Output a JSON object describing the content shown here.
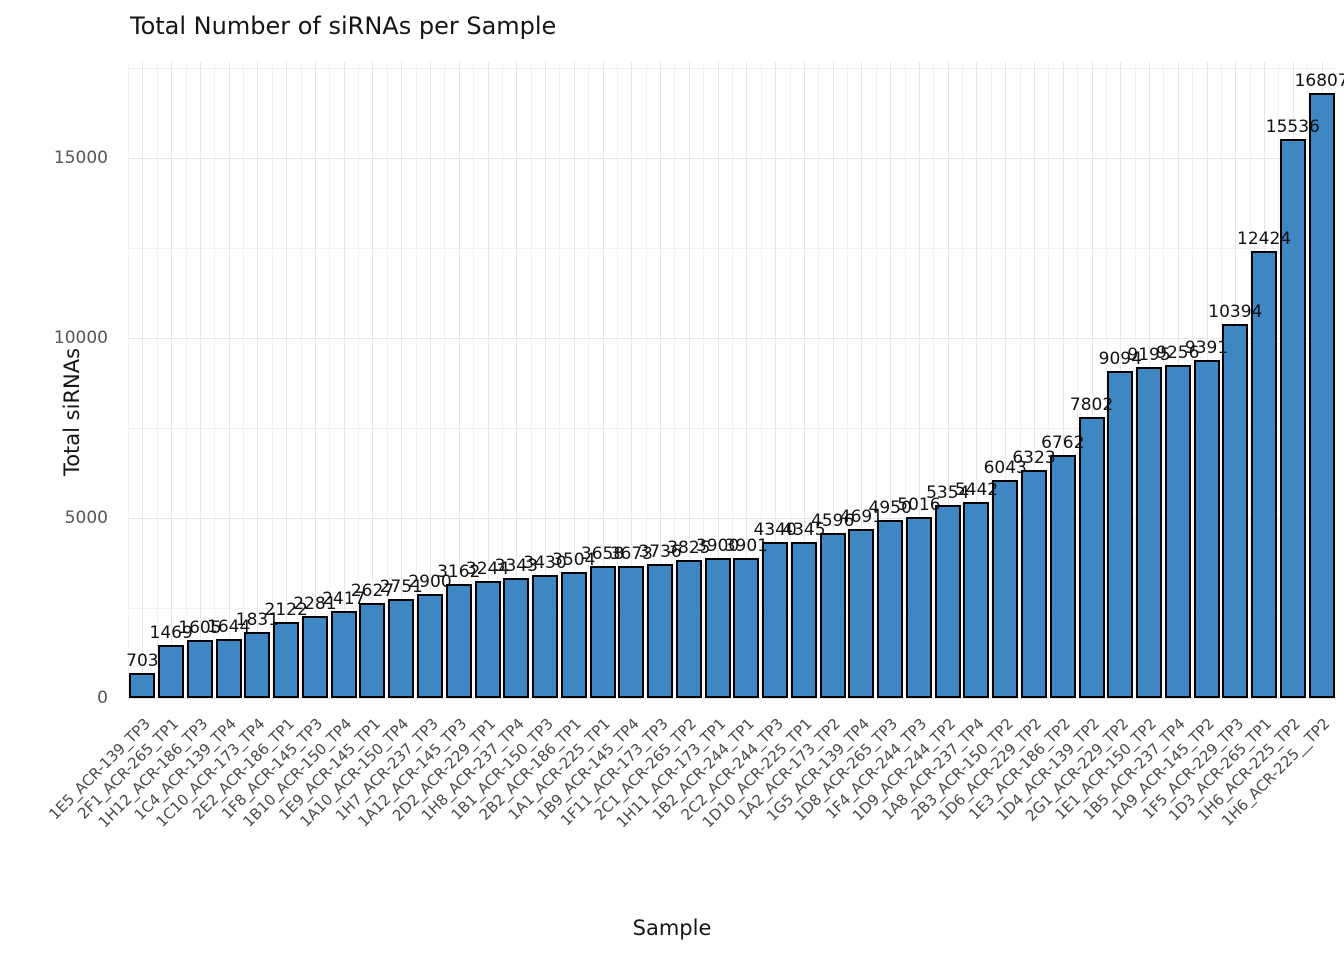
{
  "title": "Total Number of siRNAs per Sample",
  "chart_data": {
    "type": "bar",
    "title": "Total Number of siRNAs per Sample",
    "xlabel": "Sample",
    "ylabel": "Total siRNAs",
    "ylim": [
      0,
      17670
    ],
    "yticks": [
      0,
      5000,
      10000,
      15000
    ],
    "grid": true,
    "legend": "none",
    "bar_color": "#3e87c2",
    "bar_edge_color": "#000000",
    "value_labels_shown": true,
    "categories": [
      "1E5_ACR-139_TP3",
      "2F1_ACR-265_TP1",
      "1H12_ACR-186_TP3",
      "1C4_ACR-139_TP4",
      "1C10_ACR-173_TP4",
      "2E2_ACR-186_TP1",
      "1F8_ACR-145_TP3",
      "1B10_ACR-150_TP4",
      "1E9_ACR-145_TP1",
      "1A10_ACR-150_TP4",
      "1H7_ACR-237_TP3",
      "1A12_ACR-145_TP3",
      "2D2_ACR-229_TP1",
      "1H8_ACR-237_TP4",
      "1B1_ACR-150_TP3",
      "2B2_ACR-186_TP1",
      "1A1_ACR-225_TP1",
      "1B9_ACR-145_TP4",
      "1F11_ACR-173_TP3",
      "2C1_ACR-265_TP2",
      "1H11_ACR-173_TP1",
      "1B2_ACR-244_TP1",
      "2C2_ACR-244_TP3",
      "1D10_ACR-225_TP1",
      "1A2_ACR-173_TP2",
      "1G5_ACR-139_TP4",
      "1D8_ACR-265_TP3",
      "1F4_ACR-244_TP3",
      "1D9_ACR-244_TP2",
      "1A8_ACR-237_TP4",
      "2B3_ACR-150_TP2",
      "1D6_ACR-229_TP2",
      "1E3_ACR-186_TP2",
      "1D4_ACR-139_TP2",
      "2G1_ACR-229_TP2",
      "1E1_ACR-150_TP2",
      "1B5_ACR-237_TP4",
      "1A9_ACR-145_TP2",
      "1F5_ACR-229_TP3",
      "1D3_ACR-265_TP1",
      "1H6_ACR-225_TP2",
      "1H6_ACR-225__TP2"
    ],
    "values": [
      703,
      1469,
      1605,
      1644,
      1831,
      2122,
      2281,
      2417,
      2627,
      2751,
      2900,
      3162,
      3244,
      3343,
      3430,
      3504,
      3658,
      3673,
      3736,
      3825,
      3900,
      3901,
      4340,
      4345,
      4596,
      4691,
      4950,
      5016,
      5354,
      5442,
      6043,
      6323,
      6762,
      7802,
      9094,
      9195,
      9256,
      9391,
      10394,
      12424,
      15536,
      16807
    ]
  }
}
